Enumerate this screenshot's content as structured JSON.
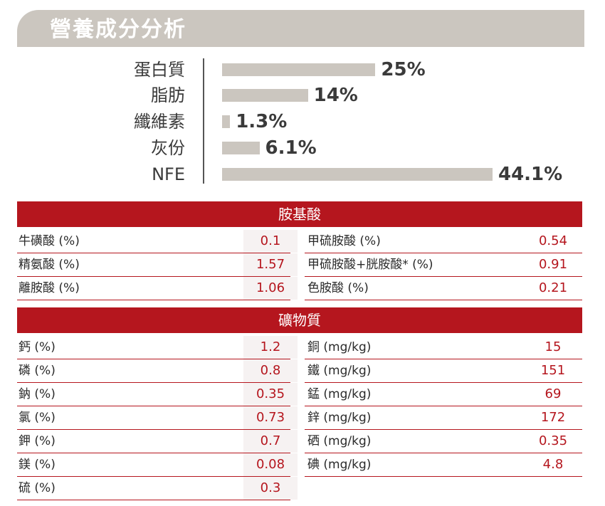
{
  "section_title": "營養成分分析",
  "chart_data": {
    "type": "bar",
    "categories": [
      "蛋白質",
      "脂肪",
      "纖維素",
      "灰份",
      "NFE"
    ],
    "values": [
      25,
      14,
      1.3,
      6.1,
      44.1
    ],
    "value_labels": [
      "25%",
      "14%",
      "1.3%",
      "6.1%",
      "44.1%"
    ],
    "bar_color": "#cbc6bf"
  },
  "amino": {
    "title": "胺基酸",
    "rows": [
      {
        "l_name": "牛磺酸 (%)",
        "l_val": "0.1",
        "r_name": "甲硫胺酸 (%)",
        "r_val": "0.54"
      },
      {
        "l_name": "精氨酸 (%)",
        "l_val": "1.57",
        "r_name": "甲硫胺酸+胱胺酸* (%)",
        "r_val": "0.91"
      },
      {
        "l_name": "離胺酸 (%)",
        "l_val": "1.06",
        "r_name": "色胺酸 (%)",
        "r_val": "0.21"
      }
    ]
  },
  "mineral": {
    "title": "礦物質",
    "rows": [
      {
        "l_name": "鈣 (%)",
        "l_val": "1.2",
        "r_name": "銅 (mg/kg)",
        "r_val": "15"
      },
      {
        "l_name": "磷 (%)",
        "l_val": "0.8",
        "r_name": "鐵 (mg/kg)",
        "r_val": "151"
      },
      {
        "l_name": "鈉 (%)",
        "l_val": "0.35",
        "r_name": "錳 (mg/kg)",
        "r_val": "69"
      },
      {
        "l_name": "氯 (%)",
        "l_val": "0.73",
        "r_name": "鋅 (mg/kg)",
        "r_val": "172"
      },
      {
        "l_name": "鉀 (%)",
        "l_val": "0.7",
        "r_name": "硒 (mg/kg)",
        "r_val": "0.35"
      },
      {
        "l_name": "鎂 (%)",
        "l_val": "0.08",
        "r_name": "碘 (mg/kg)",
        "r_val": "4.8"
      },
      {
        "l_name": "硫 (%)",
        "l_val": "0.3",
        "r_name": "",
        "r_val": ""
      }
    ]
  },
  "colors": {
    "accent": "#b5161e",
    "band": "#cbc6bf"
  }
}
